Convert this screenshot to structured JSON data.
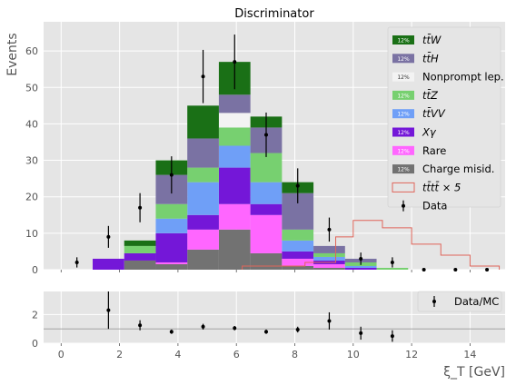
{
  "chart_data": [
    {
      "type": "bar",
      "stacked": true,
      "title": "Discriminator",
      "ylabel": "Events",
      "xlim": [
        -0.6,
        15.2
      ],
      "ylim": [
        0,
        68
      ],
      "yticks": [
        0,
        10,
        20,
        30,
        40,
        50,
        60
      ],
      "xticks": [
        0,
        2,
        4,
        6,
        8,
        10,
        12,
        14
      ],
      "grid": true,
      "legend_position": "upper-right",
      "bin_edges": [
        1.08,
        2.16,
        3.24,
        4.32,
        5.4,
        6.48,
        7.56,
        8.64,
        9.72,
        10.8,
        11.88
      ],
      "series": [
        {
          "name": "Charge misid.",
          "color": "#727272",
          "values": [
            0,
            2.5,
            1.5,
            5.5,
            11,
            4.5,
            1,
            0.5,
            0,
            0
          ]
        },
        {
          "name": "Rare",
          "color": "#ff66ff",
          "values": [
            0,
            0,
            0.5,
            5.5,
            7,
            10.5,
            2,
            1,
            0,
            0
          ]
        },
        {
          "name": "Xγ",
          "color": "#7417d8",
          "values": [
            3,
            2,
            8,
            4,
            10,
            3,
            2,
            1,
            0.5,
            0
          ]
        },
        {
          "name": "tt̄VV",
          "color": "#6f9ff7",
          "values": [
            0,
            0,
            4,
            9,
            6,
            6,
            3,
            1,
            0.5,
            0
          ]
        },
        {
          "name": "tt̄Z",
          "color": "#77d070",
          "values": [
            0,
            2,
            4,
            4,
            5,
            8,
            3,
            1,
            1,
            0.5
          ]
        },
        {
          "name": "Nonprompt lep.",
          "color": "#f3f3f3",
          "values": [
            0,
            0,
            0,
            0,
            4,
            0,
            0,
            0,
            0,
            0
          ]
        },
        {
          "name": "tt̄H",
          "color": "#7a72a3",
          "values": [
            0,
            0,
            8,
            8,
            5,
            7,
            10,
            2,
            1,
            0
          ]
        },
        {
          "name": "tt̄W",
          "color": "#1a7016",
          "values": [
            0,
            1.5,
            4,
            9,
            9,
            3,
            3,
            0,
            0,
            0
          ]
        }
      ],
      "tttt": {
        "name": "tt̄tt̄ × 5",
        "color": "#e0655a",
        "edges": [
          6.2,
          7.27,
          8.35,
          9.4,
          10.0,
          11.0,
          12.0,
          13.0,
          14.0,
          15.0
        ],
        "values": [
          1,
          1,
          2,
          9,
          13.5,
          11.5,
          7,
          4,
          1
        ]
      },
      "data_points": {
        "name": "Data",
        "x": [
          0.54,
          1.62,
          2.7,
          3.78,
          4.86,
          5.94,
          7.02,
          8.1,
          9.18,
          10.26,
          11.34,
          12.42,
          13.5,
          14.58
        ],
        "y": [
          2,
          9,
          17,
          26,
          53,
          57,
          37,
          23,
          11,
          3,
          2,
          0,
          0,
          0
        ],
        "yerr": [
          1.4,
          3,
          4,
          5.1,
          7.3,
          7.5,
          6.1,
          4.8,
          3.3,
          1.7,
          1.4,
          0,
          0,
          0
        ]
      }
    },
    {
      "type": "scatter",
      "xlabel": "ξ_T [GeV]",
      "ylim": [
        0,
        3.6
      ],
      "yticks": [
        0,
        2
      ],
      "reference_line": 1,
      "legend_position": "upper-right",
      "series": [
        {
          "name": "Data/MC",
          "x": [
            1.62,
            2.7,
            3.78,
            4.86,
            5.94,
            7.02,
            8.1,
            9.18,
            10.26,
            11.34
          ],
          "y": [
            2.3,
            1.25,
            0.8,
            1.15,
            1.05,
            0.8,
            0.95,
            1.55,
            0.7,
            0.5
          ],
          "yerr": [
            1.3,
            0.35,
            0.15,
            0.2,
            0.15,
            0.15,
            0.2,
            0.6,
            0.45,
            0.4
          ]
        }
      ]
    }
  ],
  "legend_labels": [
    "tt̄W",
    "tt̄H",
    "Nonprompt lep.",
    "tt̄Z",
    "tt̄VV",
    "Xγ",
    "Rare",
    "Charge misid.",
    "tt̄tt̄ × 5",
    "Data"
  ],
  "legend_badge": "12%"
}
